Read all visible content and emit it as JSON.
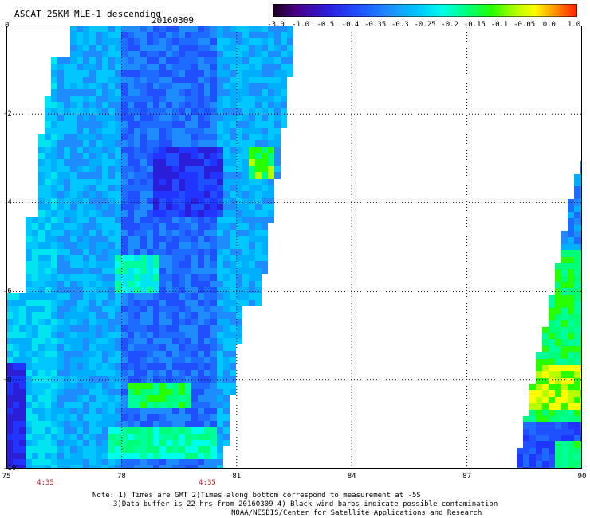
{
  "header": {
    "title": "ASCAT 25KM MLE-1 descending",
    "date": "20160309"
  },
  "colorbar": {
    "labels": [
      "-3.0",
      "-1.0",
      "-0.5",
      "-0.4",
      "-0.35",
      "-0.3",
      "-0.25",
      "-0.2",
      "-0.15",
      "-0.1",
      "-0.05",
      "0.0",
      "1.0"
    ],
    "colors": [
      "#1a001a",
      "#4b008c",
      "#2a1ed8",
      "#2050ff",
      "#1e8cff",
      "#00c8ff",
      "#00ffe6",
      "#00ff78",
      "#28ff00",
      "#b4ff00",
      "#ffff00",
      "#ff8c00",
      "#ff1e00"
    ]
  },
  "map": {
    "x_ticks": [
      "75",
      "78",
      "81",
      "84",
      "87",
      "90"
    ],
    "y_ticks": [
      "0",
      "-2",
      "-4",
      "-6",
      "-8",
      "-10"
    ],
    "times": [
      "4:35",
      "4:35"
    ],
    "lon_range": [
      75,
      90
    ],
    "lat_range": [
      0,
      -10
    ]
  },
  "footer": {
    "line1": "Note: 1) Times are GMT 2)Times along bottom correspond to measurement at -5S",
    "line2": "3)Data buffer is 22 hrs from 20160309 4) Black wind barbs indicate possible contamination",
    "line3": "NOAA/NESDIS/Center for Satellite Applications and Research"
  }
}
